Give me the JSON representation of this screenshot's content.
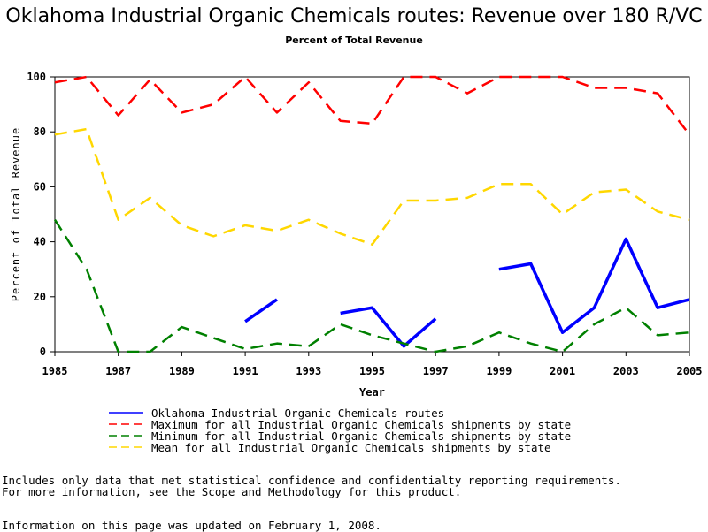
{
  "chart_data": {
    "type": "line",
    "title": "Oklahoma Industrial Organic Chemicals routes: Revenue over 180 R/VC",
    "subtitle": "Percent of Total Revenue",
    "xlabel": "Year",
    "ylabel": "Percent of Total Revenue",
    "xlim": [
      1985,
      2005
    ],
    "ylim": [
      0,
      100
    ],
    "x_ticks": [
      "1985",
      "1987",
      "1989",
      "1991",
      "1993",
      "1995",
      "1997",
      "1999",
      "2001",
      "2003",
      "2005"
    ],
    "y_ticks": [
      "0",
      "20",
      "40",
      "60",
      "80",
      "100"
    ],
    "grid": false,
    "legend_position": "bottom",
    "x": [
      1985,
      1986,
      1987,
      1988,
      1989,
      1990,
      1991,
      1992,
      1993,
      1994,
      1995,
      1996,
      1997,
      1998,
      1999,
      2000,
      2001,
      2002,
      2003,
      2004,
      2005
    ],
    "series": [
      {
        "name": "Oklahoma Industrial Organic Chemicals routes",
        "color": "#0000ff",
        "dash": "solid",
        "values": [
          null,
          null,
          null,
          null,
          null,
          null,
          11,
          19,
          null,
          14,
          16,
          2,
          12,
          null,
          30,
          32,
          7,
          16,
          41,
          16,
          19
        ]
      },
      {
        "name": "Maximum for all Industrial Organic Chemicals shipments by state",
        "color": "#ff0000",
        "dash": "dashed",
        "values": [
          98,
          100,
          86,
          99,
          87,
          90,
          100,
          87,
          98,
          84,
          83,
          100,
          100,
          94,
          100,
          100,
          100,
          96,
          96,
          94,
          79
        ]
      },
      {
        "name": "Minimum for all Industrial Organic Chemicals shipments by state",
        "color": "#008000",
        "dash": "dashed",
        "values": [
          48,
          30,
          0,
          0,
          9,
          5,
          1,
          3,
          2,
          10,
          6,
          3,
          0,
          2,
          7,
          3,
          0,
          10,
          16,
          6,
          7
        ]
      },
      {
        "name": "Mean for all Industrial Organic Chemicals shipments by state",
        "color": "#ffd700",
        "dash": "dashed",
        "values": [
          79,
          81,
          48,
          56,
          46,
          42,
          46,
          44,
          48,
          43,
          39,
          55,
          55,
          56,
          61,
          61,
          50,
          58,
          59,
          51,
          48
        ]
      }
    ]
  },
  "notes": {
    "line1": "Includes only data that met statistical confidence and confidentialty reporting requirements.",
    "line2": "For more information, see the Scope and Methodology for this product.",
    "line3": "Information on this page was updated on February 1, 2008."
  }
}
